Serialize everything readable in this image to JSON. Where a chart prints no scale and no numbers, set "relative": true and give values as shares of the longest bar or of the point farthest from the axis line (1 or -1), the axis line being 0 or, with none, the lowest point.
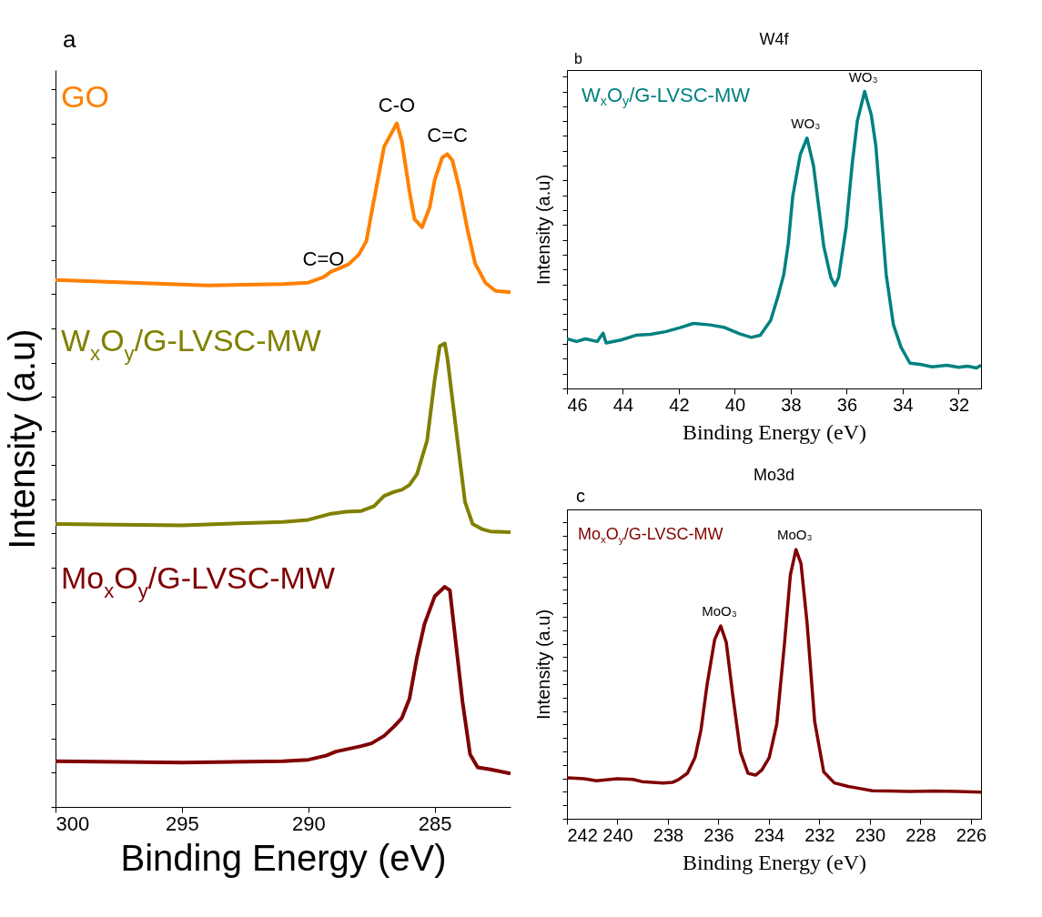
{
  "chart_data": [
    {
      "type": "line",
      "relative": true,
      "xlabel": "Binding Energy (eV)",
      "ylabel": "Intensity (a.u)",
      "xlim": [
        300,
        282
      ],
      "xticks": [
        300,
        295,
        290,
        285
      ],
      "tick_labels": "x",
      "annotations": [
        "a",
        {
          "text": "C=O",
          "x": 289.4,
          "y": 0.775
        },
        {
          "text": "C-O",
          "x": 286.5,
          "y": 1.0
        },
        {
          "text": "C=C",
          "x": 284.5,
          "y": 0.955
        }
      ],
      "series": [
        {
          "name": "GO",
          "color": "#ff8000",
          "x": [
            300,
            297,
            294,
            291,
            290,
            289.4,
            289.1,
            288.7,
            288.4,
            288.0,
            287.7,
            287.5,
            287.0,
            286.5,
            286.3,
            286.0,
            285.8,
            285.5,
            285.2,
            285.0,
            284.7,
            284.5,
            284.3,
            284.0,
            283.7,
            283.4,
            283.0,
            282.6,
            282.0
          ],
          "values": [
            0.771,
            0.767,
            0.763,
            0.765,
            0.767,
            0.775,
            0.783,
            0.789,
            0.794,
            0.808,
            0.828,
            0.869,
            0.966,
            1.0,
            0.974,
            0.901,
            0.86,
            0.848,
            0.877,
            0.917,
            0.95,
            0.955,
            0.946,
            0.901,
            0.844,
            0.795,
            0.767,
            0.755,
            0.753
          ]
        },
        {
          "name": "W$_{x}$O$_{y}$/G-LVSC-MW",
          "color": "#808000",
          "x": [
            300,
            295,
            291.0,
            290.0,
            289.1,
            288.5,
            287.9,
            287.4,
            287.0,
            286.6,
            286.3,
            286.0,
            285.7,
            285.3,
            285.0,
            284.8,
            284.6,
            284.5,
            284.1,
            283.8,
            283.5,
            283.1,
            282.8,
            282.0
          ],
          "values": [
            0.414,
            0.412,
            0.417,
            0.42,
            0.429,
            0.432,
            0.433,
            0.44,
            0.455,
            0.461,
            0.464,
            0.471,
            0.487,
            0.536,
            0.625,
            0.674,
            0.678,
            0.657,
            0.536,
            0.446,
            0.414,
            0.406,
            0.403,
            0.402
          ]
        },
        {
          "name": "Mo$_{x}$O$_{y}$/G-LVSC-MW",
          "color": "#800000",
          "x": [
            300,
            295,
            291,
            290,
            289.3,
            288.9,
            288.4,
            287.9,
            287.5,
            287.0,
            286.6,
            286.3,
            286.0,
            285.7,
            285.4,
            285.0,
            284.6,
            284.4,
            284.2,
            283.9,
            283.6,
            283.3,
            282.8,
            282.0
          ],
          "values": [
            0.067,
            0.065,
            0.067,
            0.069,
            0.075,
            0.081,
            0.085,
            0.089,
            0.093,
            0.104,
            0.118,
            0.13,
            0.158,
            0.219,
            0.268,
            0.308,
            0.322,
            0.317,
            0.252,
            0.154,
            0.077,
            0.058,
            0.055,
            0.049
          ]
        }
      ]
    },
    {
      "type": "line",
      "relative": true,
      "title": "W4f",
      "xlabel": "Binding Energy (eV)",
      "ylabel": "Intensity (a.u)",
      "xlim": [
        46,
        31.2
      ],
      "xticks": [
        46,
        44,
        42,
        40,
        38,
        36,
        34,
        32
      ],
      "tick_labels": "x",
      "annotations": [
        "b",
        {
          "text": "WO₃",
          "x": 37.42,
          "y": 0.843
        },
        {
          "text": "WO₃",
          "x": 35.36,
          "y": 1.0
        }
      ],
      "series": [
        {
          "name": "W$_{x}$O$_{y}$/G-LVSC-MW",
          "color": "#008080",
          "x": [
            46,
            45.66,
            45.34,
            44.92,
            44.71,
            44.6,
            44.07,
            43.54,
            43.01,
            42.48,
            41.95,
            41.48,
            40.89,
            40.36,
            39.83,
            39.41,
            39.09,
            38.72,
            38.46,
            38.25,
            38.09,
            37.93,
            37.66,
            37.42,
            37.19,
            36.82,
            36.57,
            36.42,
            36.29,
            36.02,
            35.81,
            35.62,
            35.36,
            35.12,
            34.96,
            34.59,
            34.33,
            34.06,
            33.74,
            33.37,
            32.95,
            32.42,
            32.0,
            31.68,
            31.36,
            31.2
          ],
          "values": [
            0.167,
            0.158,
            0.167,
            0.158,
            0.186,
            0.153,
            0.163,
            0.179,
            0.182,
            0.191,
            0.205,
            0.219,
            0.214,
            0.205,
            0.184,
            0.172,
            0.179,
            0.229,
            0.309,
            0.384,
            0.487,
            0.647,
            0.788,
            0.843,
            0.751,
            0.478,
            0.374,
            0.346,
            0.374,
            0.544,
            0.751,
            0.901,
            1.0,
            0.92,
            0.817,
            0.384,
            0.214,
            0.139,
            0.085,
            0.081,
            0.073,
            0.078,
            0.071,
            0.075,
            0.069,
            0.078
          ]
        }
      ]
    },
    {
      "type": "line",
      "relative": true,
      "title": "Mo3d",
      "xlabel": "Binding Energy (eV)",
      "ylabel": "Intensity (a.u)",
      "xlim": [
        242,
        225.6
      ],
      "xticks": [
        242,
        240,
        238,
        236,
        234,
        232,
        230,
        228,
        226
      ],
      "tick_labels": "x",
      "annotations": [
        "c",
        {
          "text": "MoO₃",
          "x": 235.91,
          "y": 0.716
        },
        {
          "text": "MoO₃",
          "x": 232.93,
          "y": 1.0
        }
      ],
      "series": [
        {
          "name": "Mo$_{x}$O$_{y}$/G-LVSC-MW",
          "color": "#800000",
          "x": [
            242,
            241.32,
            240.83,
            240.0,
            239.39,
            239.03,
            238.19,
            237.83,
            237.59,
            237.23,
            236.93,
            236.69,
            236.45,
            236.15,
            235.91,
            235.69,
            235.43,
            235.13,
            234.83,
            234.53,
            234.29,
            233.99,
            233.69,
            233.39,
            233.15,
            232.93,
            232.73,
            232.49,
            232.19,
            231.83,
            231.41,
            230.86,
            230.38,
            229.9,
            229.18,
            228.46,
            227.5,
            226.54,
            225.6
          ],
          "values": [
            0.152,
            0.149,
            0.141,
            0.149,
            0.146,
            0.138,
            0.133,
            0.135,
            0.145,
            0.169,
            0.227,
            0.331,
            0.498,
            0.666,
            0.716,
            0.655,
            0.457,
            0.248,
            0.169,
            0.162,
            0.18,
            0.227,
            0.352,
            0.645,
            0.906,
            1.0,
            0.948,
            0.728,
            0.362,
            0.174,
            0.133,
            0.12,
            0.112,
            0.104,
            0.103,
            0.101,
            0.103,
            0.101,
            0.099
          ]
        }
      ]
    }
  ]
}
